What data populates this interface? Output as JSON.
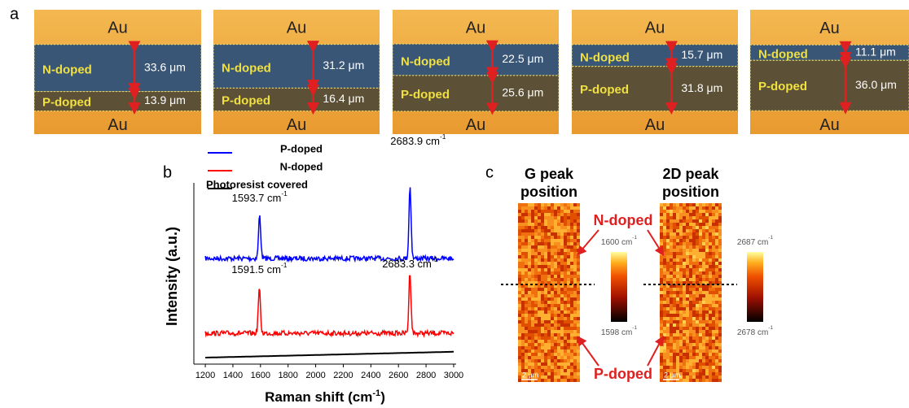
{
  "panel_a": {
    "label": "a",
    "samples": [
      {
        "top": "Au",
        "n_label": "N-doped",
        "n": {
          "value": 33.6,
          "label": "33.6 μm"
        },
        "p_label": "P-doped",
        "p": {
          "value": 13.9,
          "label": "13.9 μm"
        },
        "bottom": "Au"
      },
      {
        "top": "Au",
        "n_label": "N-doped",
        "n": {
          "value": 31.2,
          "label": "31.2 μm"
        },
        "p_label": "P-doped",
        "p": {
          "value": 16.4,
          "label": "16.4 μm"
        },
        "bottom": "Au"
      },
      {
        "top": "Au",
        "n_label": "N-doped",
        "n": {
          "value": 22.5,
          "label": "22.5 μm"
        },
        "p_label": "P-doped",
        "p": {
          "value": 25.6,
          "label": "25.6 μm"
        },
        "bottom": "Au"
      },
      {
        "top": "Au",
        "n_label": "N-doped",
        "n": {
          "value": 15.7,
          "label": "15.7 μm"
        },
        "p_label": "P-doped",
        "p": {
          "value": 31.8,
          "label": "31.8 μm"
        },
        "bottom": "Au"
      },
      {
        "top": "Au",
        "n_label": "N-doped",
        "n": {
          "value": 11.1,
          "label": "11.1 μm"
        },
        "p_label": "P-doped",
        "p": {
          "value": 36.0,
          "label": "36.0 μm"
        },
        "bottom": "Au"
      }
    ]
  },
  "panel_b": {
    "label": "b",
    "type": "line",
    "series": [
      {
        "name": "P-doped",
        "color": "#0000ff",
        "peaks": [
          {
            "x": 1593.7,
            "label": "1593.7 cm",
            "sup": "-1"
          },
          {
            "x": 2683.9,
            "label": "2683.9 cm",
            "sup": "-1"
          }
        ]
      },
      {
        "name": "N-doped",
        "color": "#ff0000",
        "peaks": [
          {
            "x": 1591.5,
            "label": "1591.5 cm",
            "sup": "-1"
          },
          {
            "x": 2683.3,
            "label": "2683.3 cm",
            "sup": "-1"
          }
        ]
      },
      {
        "name": "Photoresist covered",
        "color": "#000000",
        "peaks": []
      }
    ],
    "xlim": [
      1117,
      3018
    ],
    "xticks": [
      1200,
      1400,
      1600,
      1800,
      2000,
      2200,
      2400,
      2600,
      2800,
      3000
    ],
    "y_label": "Intensity (a.u.)",
    "x_label": {
      "text": "Raman shift (cm",
      "sup": "-1",
      "end": ")"
    }
  },
  "panel_c": {
    "label": "c",
    "maps": [
      {
        "title": [
          "G peak",
          "position"
        ],
        "scale": "2 μm",
        "cbar_max": {
          "text": "1600 cm",
          "sup": "-1"
        },
        "cbar_min": {
          "text": "1598 cm",
          "sup": "-1"
        }
      },
      {
        "title": [
          "2D peak",
          "position"
        ],
        "scale": "2 μm",
        "cbar_max": {
          "text": "2687 cm",
          "sup": "-1"
        },
        "cbar_min": {
          "text": "2678 cm",
          "sup": "-1"
        }
      }
    ],
    "n_label": "N-doped",
    "p_label": "P-doped"
  }
}
